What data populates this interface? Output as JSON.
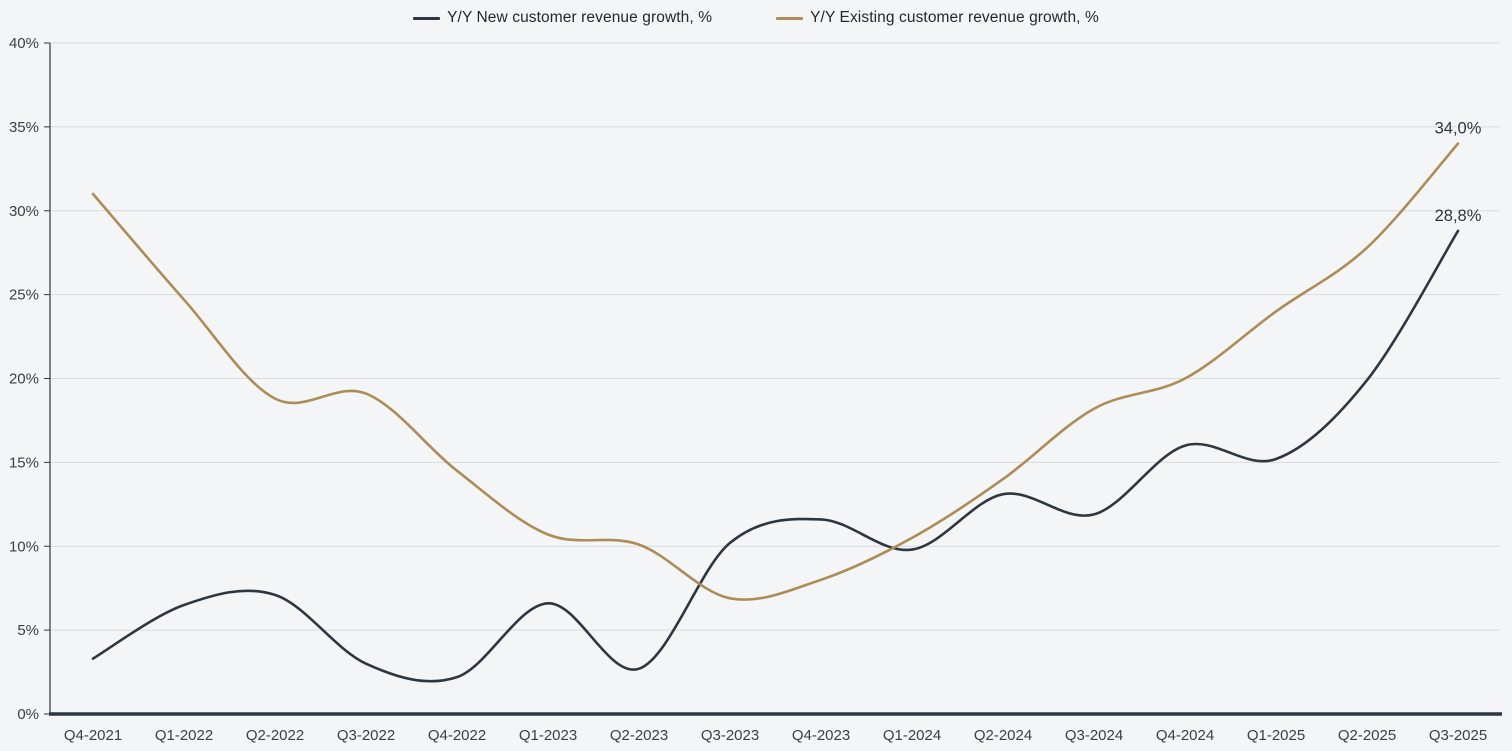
{
  "colors": {
    "background": "#f4f5f6",
    "gridline": "#d8dade",
    "axis_line": "#2e3740",
    "axis_text": "#3a4046",
    "end_label_text": "#30353a"
  },
  "chart_data": {
    "type": "line",
    "title": "",
    "xlabel": "",
    "ylabel": "",
    "ylim": [
      0,
      40
    ],
    "y_tick_step": 5,
    "y_tick_labels": [
      "0%",
      "5%",
      "10%",
      "15%",
      "20%",
      "25%",
      "30%",
      "35%",
      "40%"
    ],
    "grid": "horizontal",
    "legend_position": "top-center",
    "categories": [
      "Q4-2021",
      "Q1-2022",
      "Q2-2022",
      "Q3-2022",
      "Q4-2022",
      "Q1-2023",
      "Q2-2023",
      "Q3-2023",
      "Q4-2023",
      "Q1-2024",
      "Q2-2024",
      "Q3-2024",
      "Q4-2024",
      "Q1-2025",
      "Q2-2025",
      "Q3-2025"
    ],
    "series": [
      {
        "id": "new",
        "name": "Y/Y New customer revenue growth, %",
        "color": "#2e3740",
        "values": [
          3.3,
          6.5,
          7.1,
          3.0,
          2.2,
          6.6,
          2.7,
          10.2,
          11.6,
          9.8,
          13.1,
          11.9,
          16.0,
          15.2,
          19.9,
          28.8
        ],
        "end_label": "28,8%"
      },
      {
        "id": "existing",
        "name": "Y/Y Existing customer revenue growth, %",
        "color": "#ac8c57",
        "values": [
          31.0,
          24.7,
          18.8,
          19.1,
          14.5,
          10.7,
          10.1,
          6.9,
          8.0,
          10.5,
          14.0,
          18.2,
          20.0,
          24.0,
          27.8,
          34.0
        ],
        "end_label": "34,0%"
      }
    ]
  }
}
